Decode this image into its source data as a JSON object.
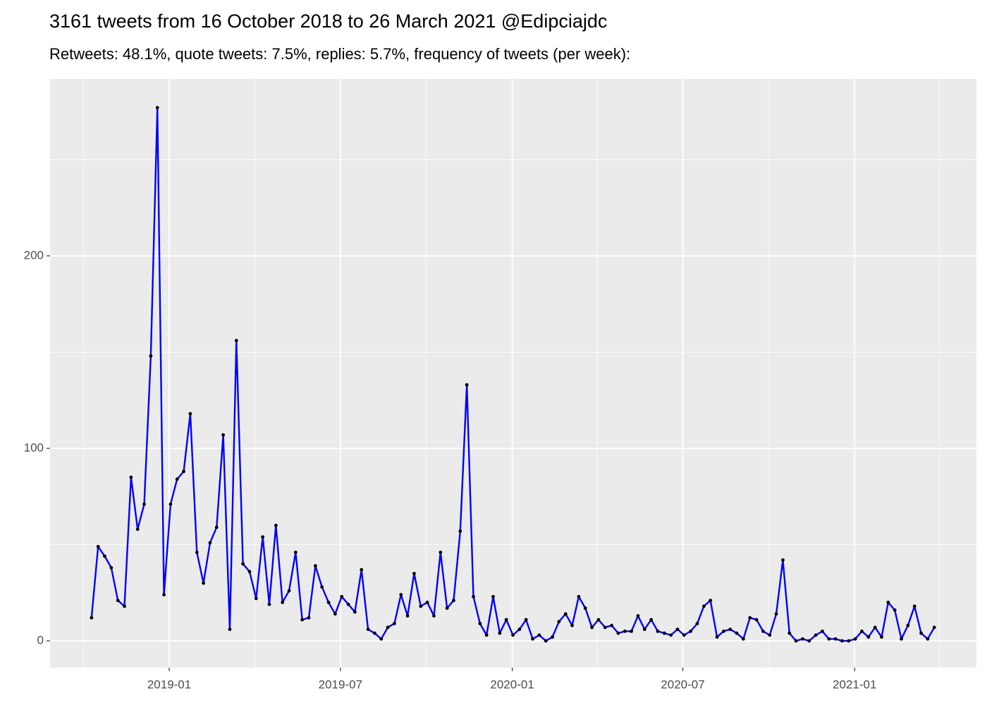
{
  "chart_data": {
    "type": "line",
    "title": "3161 tweets from 16 October 2018 to 26 March 2021 @Edipciajdc",
    "subtitle": "Retweets: 48.1%, quote tweets: 7.5%, replies: 5.7%, frequency of tweets (per week):",
    "values": [
      12,
      49,
      44,
      38,
      21,
      18,
      85,
      58,
      71,
      148,
      277,
      24,
      71,
      84,
      88,
      118,
      46,
      30,
      51,
      59,
      107,
      6,
      156,
      40,
      36,
      22,
      54,
      19,
      60,
      20,
      26,
      46,
      11,
      12,
      39,
      28,
      20,
      14,
      23,
      19,
      15,
      37,
      6,
      4,
      1,
      7,
      9,
      24,
      13,
      35,
      18,
      20,
      13,
      46,
      17,
      21,
      57,
      133,
      23,
      9,
      3,
      23,
      4,
      11,
      3,
      6,
      11,
      1,
      3,
      0,
      2,
      10,
      14,
      8,
      23,
      17,
      7,
      11,
      7,
      8,
      4,
      5,
      5,
      13,
      6,
      11,
      5,
      4,
      3,
      6,
      3,
      5,
      9,
      18,
      21,
      2,
      5,
      6,
      4,
      1,
      12,
      11,
      5,
      3,
      14,
      42,
      4,
      0,
      1,
      0,
      3,
      5,
      1,
      1,
      0,
      0,
      1,
      5,
      2,
      7,
      2,
      20,
      16,
      1,
      8,
      18,
      4,
      1,
      7
    ],
    "color": "#0000ff",
    "marker_color": "#000000",
    "xlim": [
      -6.3,
      134.4
    ],
    "xticks": [
      {
        "value": 11.8,
        "label": "2019-01"
      },
      {
        "value": 37.8,
        "label": "2019-07"
      },
      {
        "value": 63.9,
        "label": "2020-01"
      },
      {
        "value": 89.8,
        "label": "2020-07"
      },
      {
        "value": 115.9,
        "label": "2021-01"
      }
    ],
    "ylim": [
      -13.9,
      291.9
    ],
    "yticks": [
      0,
      100,
      200
    ],
    "grid": true
  }
}
